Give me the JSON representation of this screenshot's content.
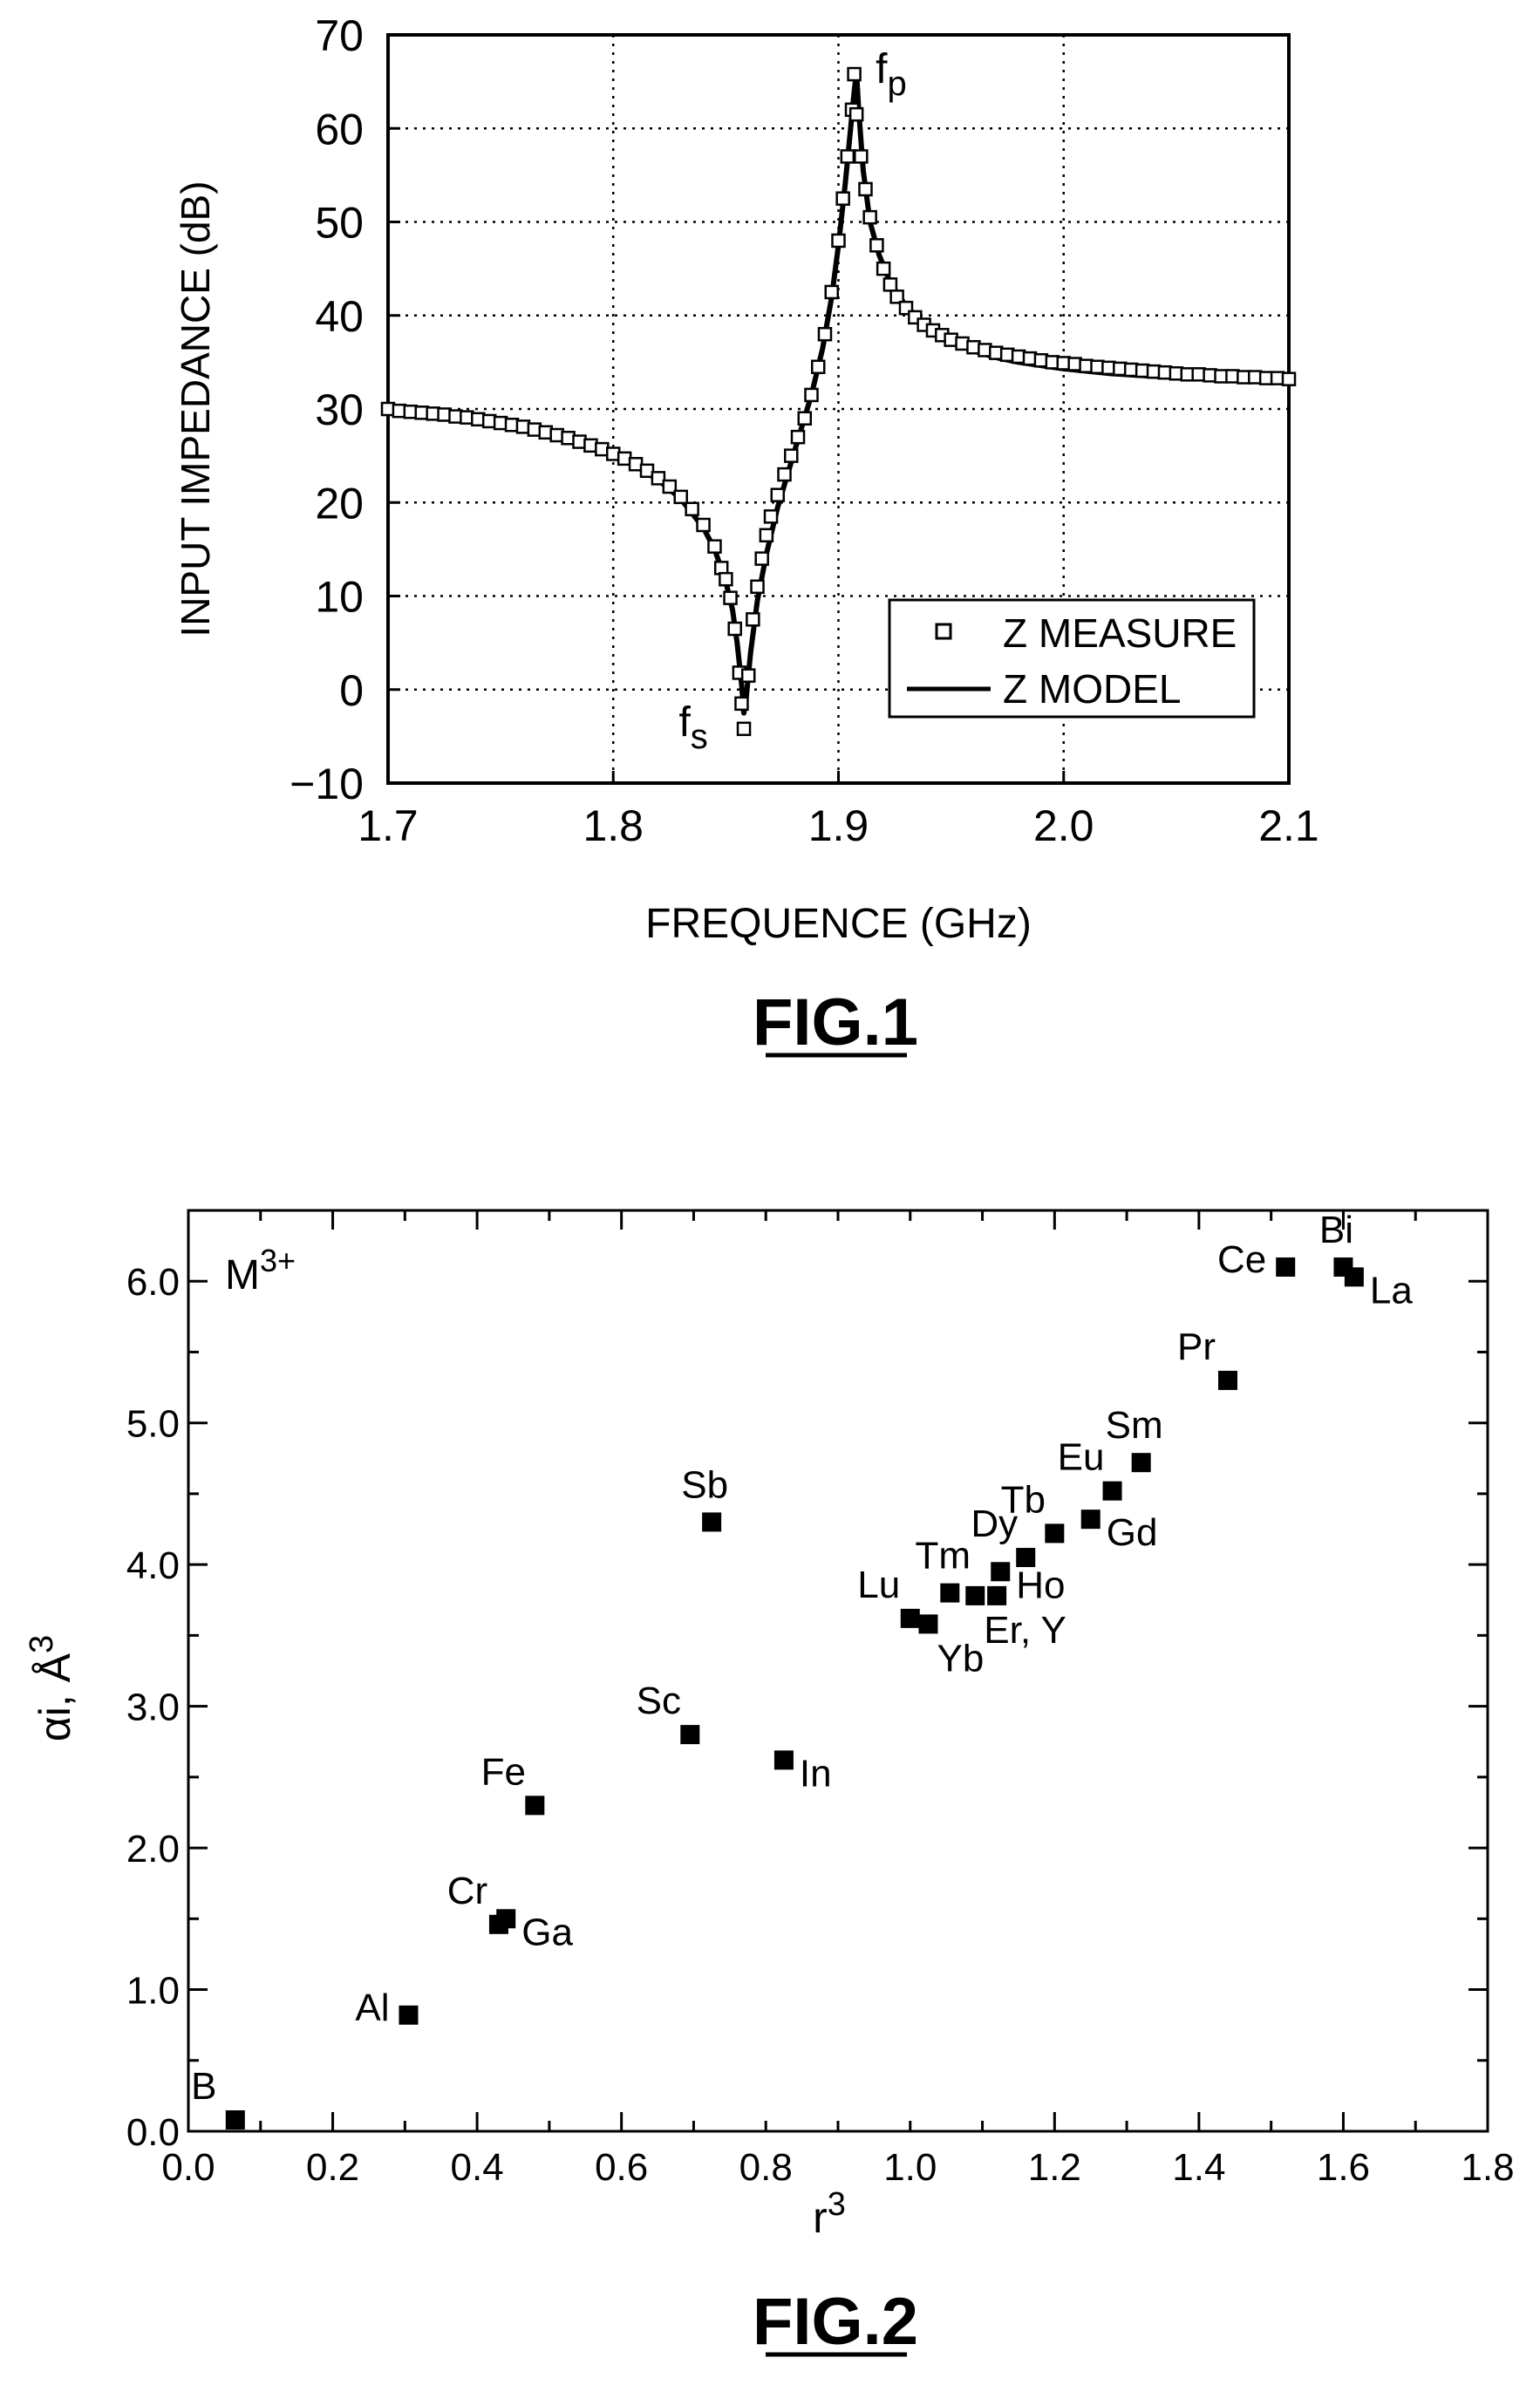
{
  "chart_data": [
    {
      "id": "fig1",
      "type": "line",
      "caption": "FIG.1",
      "xlabel": "FREQUENCE (GHz)",
      "ylabel": "INPUT IMPEDANCE (dB)",
      "xlim": [
        1.7,
        2.1
      ],
      "ylim": [
        -10,
        70
      ],
      "xticks": [
        1.7,
        1.8,
        1.9,
        2.0,
        2.1
      ],
      "xtick_labels": [
        "1.7",
        "1.8",
        "1.9",
        "2.0",
        "2.1"
      ],
      "yticks": [
        -10,
        0,
        10,
        20,
        30,
        40,
        50,
        60,
        70
      ],
      "ytick_labels": [
        "−10",
        "0",
        "10",
        "20",
        "30",
        "40",
        "50",
        "60",
        "70"
      ],
      "grid": "dotted",
      "legend_position": "bottom-right",
      "series": [
        {
          "name": "Z MEASURE",
          "style": "square-markers",
          "x": [
            1.7,
            1.705,
            1.71,
            1.715,
            1.72,
            1.725,
            1.73,
            1.735,
            1.74,
            1.745,
            1.75,
            1.755,
            1.76,
            1.765,
            1.77,
            1.775,
            1.78,
            1.785,
            1.79,
            1.795,
            1.8,
            1.805,
            1.81,
            1.815,
            1.82,
            1.825,
            1.83,
            1.835,
            1.84,
            1.845,
            1.848,
            1.85,
            1.852,
            1.854,
            1.856,
            1.857,
            1.858,
            1.86,
            1.862,
            1.864,
            1.866,
            1.868,
            1.87,
            1.873,
            1.876,
            1.879,
            1.882,
            1.885,
            1.888,
            1.891,
            1.894,
            1.897,
            1.9,
            1.902,
            1.904,
            1.906,
            1.907,
            1.908,
            1.91,
            1.912,
            1.914,
            1.917,
            1.92,
            1.923,
            1.926,
            1.93,
            1.934,
            1.938,
            1.942,
            1.946,
            1.95,
            1.955,
            1.96,
            1.965,
            1.97,
            1.975,
            1.98,
            1.985,
            1.99,
            1.995,
            2.0,
            2.005,
            2.01,
            2.015,
            2.02,
            2.025,
            2.03,
            2.035,
            2.04,
            2.045,
            2.05,
            2.055,
            2.06,
            2.065,
            2.07,
            2.075,
            2.08,
            2.085,
            2.09,
            2.095,
            2.1
          ],
          "y": [
            30.0,
            29.8,
            29.7,
            29.6,
            29.5,
            29.4,
            29.2,
            29.1,
            28.9,
            28.7,
            28.5,
            28.3,
            28.1,
            27.8,
            27.5,
            27.2,
            26.9,
            26.5,
            26.1,
            25.7,
            25.2,
            24.7,
            24.1,
            23.4,
            22.6,
            21.7,
            20.6,
            19.3,
            17.6,
            15.3,
            13.0,
            11.8,
            9.8,
            6.5,
            1.8,
            -1.5,
            -4.2,
            1.5,
            7.5,
            11.0,
            14.0,
            16.5,
            18.5,
            20.8,
            23.0,
            25.0,
            27.0,
            29.0,
            31.5,
            34.5,
            38.0,
            42.5,
            48.0,
            52.5,
            57.0,
            62.0,
            65.8,
            61.5,
            57.0,
            53.5,
            50.5,
            47.5,
            45.0,
            43.3,
            42.0,
            40.8,
            39.8,
            39.0,
            38.4,
            37.9,
            37.4,
            37.0,
            36.6,
            36.3,
            36.0,
            35.8,
            35.6,
            35.4,
            35.2,
            35.0,
            34.9,
            34.8,
            34.6,
            34.5,
            34.4,
            34.3,
            34.2,
            34.1,
            34.0,
            33.9,
            33.8,
            33.7,
            33.7,
            33.6,
            33.5,
            33.5,
            33.4,
            33.4,
            33.3,
            33.3,
            33.2
          ]
        },
        {
          "name": "Z MODEL",
          "style": "solid-line",
          "x": [
            1.7,
            1.72,
            1.74,
            1.76,
            1.78,
            1.8,
            1.81,
            1.82,
            1.83,
            1.84,
            1.845,
            1.85,
            1.853,
            1.855,
            1.857,
            1.858,
            1.859,
            1.861,
            1.864,
            1.868,
            1.873,
            1.878,
            1.883,
            1.888,
            1.893,
            1.897,
            1.9,
            1.903,
            1.905,
            1.907,
            1.908,
            1.909,
            1.911,
            1.914,
            1.918,
            1.923,
            1.93,
            1.94,
            1.95,
            1.96,
            1.97,
            1.98,
            2.0,
            2.02,
            2.04,
            2.06,
            2.08,
            2.1
          ],
          "y": [
            29.8,
            29.4,
            28.7,
            27.9,
            26.7,
            25.0,
            23.9,
            22.4,
            20.4,
            17.3,
            15.0,
            11.5,
            8.5,
            5.0,
            0.5,
            -2.5,
            -1.0,
            4.0,
            9.5,
            14.5,
            19.5,
            23.5,
            27.5,
            31.5,
            36.5,
            42.0,
            47.5,
            54.0,
            59.0,
            64.0,
            66.0,
            62.0,
            55.5,
            50.0,
            46.5,
            43.5,
            41.0,
            38.7,
            37.2,
            36.2,
            35.5,
            35.0,
            34.3,
            33.8,
            33.5,
            33.3,
            33.1,
            33.0
          ]
        }
      ],
      "annotations": [
        {
          "label": "f",
          "sub": "p",
          "x": 1.908,
          "y": 65.8
        },
        {
          "label": "f",
          "sub": "s",
          "x": 1.857,
          "y": -4.2
        }
      ]
    },
    {
      "id": "fig2",
      "type": "scatter",
      "caption": "FIG.2",
      "xlabel": "r",
      "xlabel_sup": "3",
      "ylabel": "αi, Å",
      "ylabel_sup": "3",
      "inset_label": "M",
      "inset_label_sup": "3+",
      "xlim": [
        0.0,
        1.8
      ],
      "ylim": [
        0.0,
        6.5
      ],
      "xticks": [
        0.0,
        0.2,
        0.4,
        0.6,
        0.8,
        1.0,
        1.2,
        1.4,
        1.6,
        1.8
      ],
      "xtick_labels": [
        "0.0",
        "0.2",
        "0.4",
        "0.6",
        "0.8",
        "1.0",
        "1.2",
        "1.4",
        "1.6",
        "1.8"
      ],
      "yticks": [
        0.0,
        1.0,
        2.0,
        3.0,
        4.0,
        5.0,
        6.0
      ],
      "ytick_labels": [
        "0.0",
        "1.0",
        "2.0",
        "3.0",
        "4.0",
        "5.0",
        "6.0"
      ],
      "grid": "off",
      "points": [
        {
          "label": "B",
          "x": 0.065,
          "y": 0.08,
          "pos": "above-left"
        },
        {
          "label": "Al",
          "x": 0.305,
          "y": 0.82,
          "pos": "left"
        },
        {
          "label": "Cr",
          "x": 0.43,
          "y": 1.46,
          "pos": "above-left"
        },
        {
          "label": "Ga",
          "x": 0.44,
          "y": 1.5,
          "pos": "right-low"
        },
        {
          "label": "Fe",
          "x": 0.48,
          "y": 2.3,
          "pos": "above-left"
        },
        {
          "label": "Sc",
          "x": 0.695,
          "y": 2.8,
          "pos": "above-left"
        },
        {
          "label": "In",
          "x": 0.825,
          "y": 2.62,
          "pos": "right-low"
        },
        {
          "label": "Sb",
          "x": 0.725,
          "y": 4.3,
          "pos": "above"
        },
        {
          "label": "Lu",
          "x": 1.0,
          "y": 3.62,
          "pos": "above-left"
        },
        {
          "label": "Yb",
          "x": 1.025,
          "y": 3.58,
          "pos": "below-right"
        },
        {
          "label": "Tm",
          "x": 1.055,
          "y": 3.8,
          "pos": "above"
        },
        {
          "label": "Er, Y",
          "x": 1.09,
          "y": 3.78,
          "pos": "below-right"
        },
        {
          "label": "",
          "x": 1.12,
          "y": 3.78,
          "pos": "none"
        },
        {
          "label": "Ho",
          "x": 1.125,
          "y": 3.95,
          "pos": "right-low"
        },
        {
          "label": "Dy",
          "x": 1.16,
          "y": 4.05,
          "pos": "above-left"
        },
        {
          "label": "Tb",
          "x": 1.2,
          "y": 4.22,
          "pos": "above-left"
        },
        {
          "label": "Gd",
          "x": 1.25,
          "y": 4.32,
          "pos": "right-low"
        },
        {
          "label": "Eu",
          "x": 1.28,
          "y": 4.52,
          "pos": "above-left"
        },
        {
          "label": "Sm",
          "x": 1.32,
          "y": 4.72,
          "pos": "above"
        },
        {
          "label": "Pr",
          "x": 1.44,
          "y": 5.3,
          "pos": "above-left"
        },
        {
          "label": "Ce",
          "x": 1.52,
          "y": 6.1,
          "pos": "left"
        },
        {
          "label": "Bi",
          "x": 1.6,
          "y": 6.1,
          "pos": "above"
        },
        {
          "label": "La",
          "x": 1.615,
          "y": 6.03,
          "pos": "right-low"
        }
      ]
    }
  ]
}
